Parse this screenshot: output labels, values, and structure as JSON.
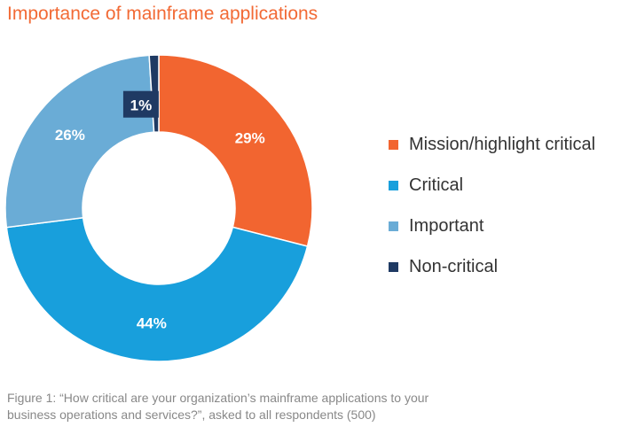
{
  "title": "Importance of mainframe applications",
  "caption": {
    "line1": "Figure 1: “How critical are your organization’s mainframe applications to your",
    "line2": "business operations and services?”, asked to all respondents (500)"
  },
  "colors": {
    "title": "#f26a35",
    "label_box": "#1f3a63"
  },
  "chart_data": {
    "type": "pie",
    "donut": true,
    "categories": [
      "Mission/highlight critical",
      "Critical",
      "Important",
      "Non-critical"
    ],
    "values": [
      29,
      44,
      26,
      1
    ],
    "labels": [
      "29%",
      "44%",
      "26%",
      "1%"
    ],
    "colors": [
      "#f26530",
      "#189fdc",
      "#6aacd6",
      "#1f3a63"
    ],
    "legend_position": "right"
  }
}
